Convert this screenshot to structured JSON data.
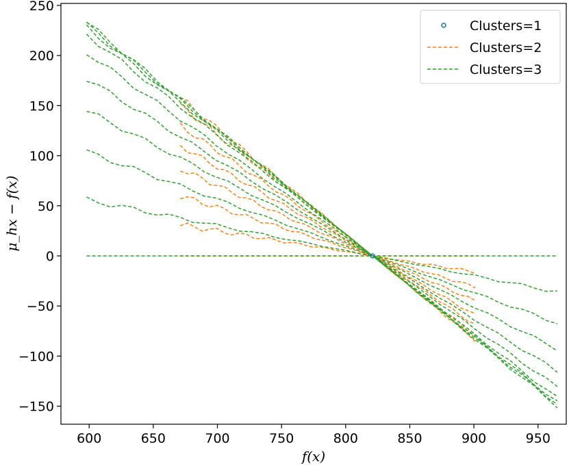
{
  "chart_data": {
    "type": "line",
    "xlabel": "f(x)",
    "ylabel": "μ_hx − f(x)",
    "xlim": [
      578,
      972
    ],
    "ylim": [
      -168,
      252
    ],
    "xticks": [
      600,
      650,
      700,
      750,
      800,
      850,
      900,
      950
    ],
    "yticks": [
      250,
      200,
      150,
      100,
      50,
      0,
      -50,
      -100,
      -150
    ],
    "xtick_labels": [
      "600",
      "650",
      "700",
      "750",
      "800",
      "850",
      "900",
      "950"
    ],
    "ytick_labels": [
      "250",
      "200",
      "150",
      "100",
      "50",
      "0",
      "−50",
      "−100",
      "−150"
    ],
    "legend": {
      "location": "top-right",
      "entries": [
        "Clusters=1",
        "Clusters=2",
        "Clusters=3"
      ]
    },
    "colors": {
      "Clusters=1": "#1f77b4",
      "Clusters=2": "#ff7f0e",
      "Clusters=3": "#2ca02c"
    },
    "crossing_point": [
      821,
      0
    ],
    "series": [
      {
        "name": "Clusters=1",
        "style": "marker",
        "points": [
          [
            821,
            0
          ]
        ]
      },
      {
        "name": "Clusters=2",
        "style": "dashed",
        "x_range": [
          671,
          901
        ],
        "lines": [
          {
            "y_at_start": 158,
            "y_at_end": -84
          },
          {
            "y_at_start": 150,
            "y_at_end": -79
          },
          {
            "y_at_start": 130,
            "y_at_end": -69
          },
          {
            "y_at_start": 110,
            "y_at_end": -59
          },
          {
            "y_at_start": 87,
            "y_at_end": -45
          },
          {
            "y_at_start": 60,
            "y_at_end": -31
          },
          {
            "y_at_start": 31,
            "y_at_end": -16
          },
          {
            "y_at_start": 0,
            "y_at_end": 0
          }
        ]
      },
      {
        "name": "Clusters=3",
        "style": "dashed",
        "x_range": [
          598,
          965
        ],
        "lines": [
          {
            "y_at_start": 233,
            "y_at_end": -150
          },
          {
            "y_at_start": 231,
            "y_at_end": -148
          },
          {
            "y_at_start": 228,
            "y_at_end": -146
          },
          {
            "y_at_start": 221,
            "y_at_end": -142
          },
          {
            "y_at_start": 203,
            "y_at_end": -131
          },
          {
            "y_at_start": 177,
            "y_at_end": -115
          },
          {
            "y_at_start": 145,
            "y_at_end": -93
          },
          {
            "y_at_start": 104,
            "y_at_end": -67
          },
          {
            "y_at_start": 56,
            "y_at_end": -36
          },
          {
            "y_at_start": 0,
            "y_at_end": 0
          }
        ]
      }
    ]
  }
}
